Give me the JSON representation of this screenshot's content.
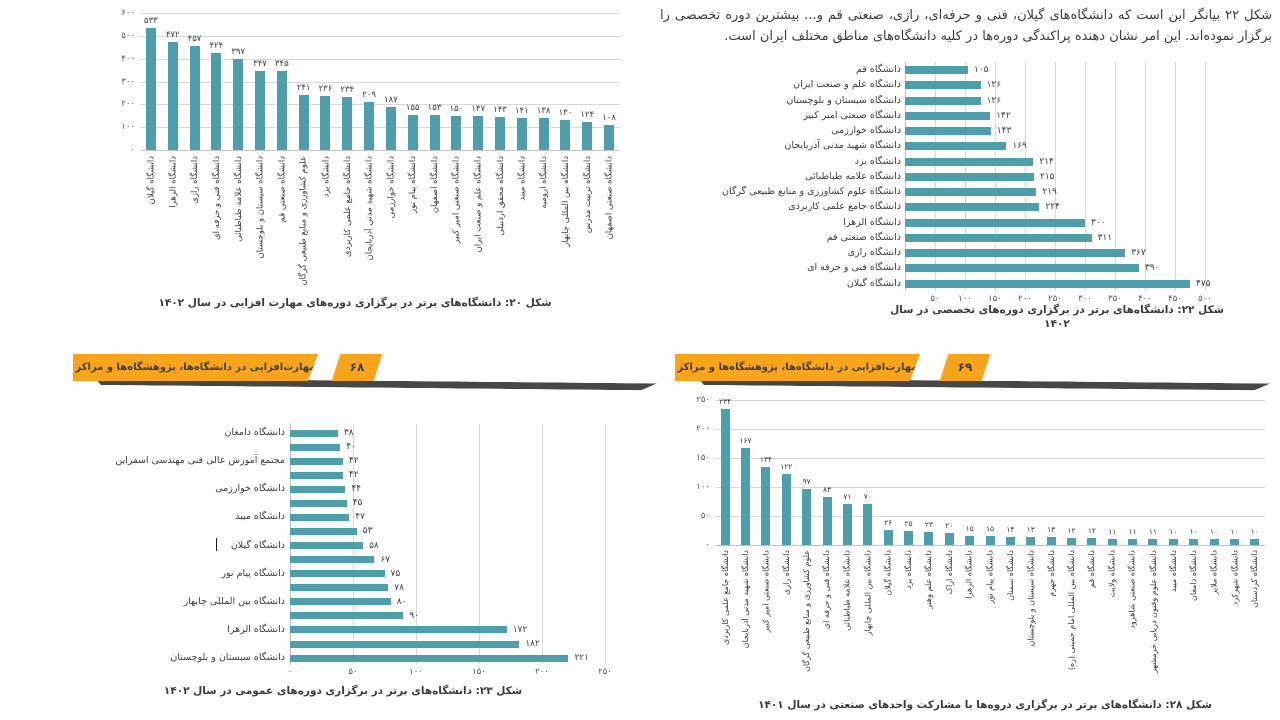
{
  "colors": {
    "bar": "#4e9fa9",
    "grid": "#d9d9d9",
    "axis": "#c2c2c2",
    "text": "#3d3d3d",
    "banner": "#f9a51c",
    "banner_shadow": "#474747"
  },
  "intro": {
    "text": "شکل ۲۲ بیانگر این است که دانشگاه‌های گیلان، فنی و حرفه‌ای، رازی، صنعتی قم و... بیشترین دوره تخصصی را برگزار نموده‌اند. این امر نشان دهنده پراکندگی دوره‌ها در کلیه دانشگاه‌های مناطق مختلف ایران است."
  },
  "banners": {
    "left": {
      "label": "مهارت‌افزایی در دانشگاه‌ها، پژوهشگاه‌ها و مراکز آموزش عالی کشور",
      "page_number": "۶۸"
    },
    "right": {
      "label": "مهارت‌افزایی در دانشگاه‌ها، پژوهشگاه‌ها و مراکز آموزش عالی کشور",
      "page_number": "۶۹"
    }
  },
  "chart_data": [
    {
      "id": "fig20",
      "type": "bar",
      "orientation": "vertical",
      "caption": "شکل ۲۰: دانشگاه‌های برتر در برگزاری دوره‌های مهارت افزایی در سال ۱۴۰۲",
      "ylim": [
        0,
        600
      ],
      "yticks": [
        0,
        100,
        200,
        300,
        400,
        500,
        600
      ],
      "grid": true,
      "categories": [
        "دانشگاه گیلان",
        "دانشگاه الزهرا",
        "دانشگاه رازی",
        "دانشگاه فنی و حرفه ای",
        "دانشگاه علامه طباطبائی",
        "دانشگاه سیستان و بلوچستان",
        "دانشگاه صنعتی قم",
        "علوم کشاورزی و منابع طبیعی گرگان",
        "دانشگاه یزد",
        "دانشگاه جامع علمی کاربردی",
        "دانشگاه شهید مدنی آذربایجان",
        "دانشگاه خوارزمی",
        "دانشگاه پیام نور",
        "دانشگاه اصفهان",
        "دانشگاه صنعتی امیر کبیر",
        "دانشگاه علم و صنعت ایران",
        "دانشگاه محقق اردبیلی",
        "دانشگاه میبد",
        "دانشگاه ارومیه",
        "دانشگاه بین المللی چابهار",
        "دانشگاه تربیت مدرس",
        "دانشگاه صنعتی اصفهان"
      ],
      "values": [
        533,
        472,
        457,
        424,
        397,
        347,
        345,
        241,
        236,
        234,
        209,
        187,
        155,
        153,
        150,
        147,
        143,
        141,
        138,
        130,
        124,
        108
      ]
    },
    {
      "id": "fig22",
      "type": "bar",
      "orientation": "horizontal",
      "caption": "شکل ۲۲: دانشگاه‌های برتر در برگزاری دوره‌های  تخصصی در سال\n۱۴۰۲",
      "xlim": [
        0,
        500
      ],
      "xticks": [
        50,
        100,
        150,
        200,
        250,
        300,
        350,
        400,
        450,
        500
      ],
      "grid": true,
      "categories": [
        "دانشگاه قم",
        "دانشگاه علم و صنعت ایران",
        "دانشگاه سیستان و بلوچستان",
        "دانشگاه صنعتی امیر کبیر",
        "دانشگاه خوارزمی",
        "دانشگاه شهید مدنی آذربایجان",
        "دانشگاه یزد",
        "دانشگاه علامه طباطبائی",
        "دانشگاه علوم کشاورزی و منابع طبیعی گرگان",
        "دانشگاه جامع علمی کاربردی",
        "دانشگاه الزهرا",
        "دانشگاه صنعتی قم",
        "دانشگاه رازی",
        "دانشگاه فنی و حرفه ای",
        "دانشگاه گیلان"
      ],
      "values": [
        105,
        126,
        126,
        142,
        143,
        169,
        214,
        215,
        219,
        224,
        300,
        311,
        367,
        390,
        475
      ]
    },
    {
      "id": "fig23",
      "type": "bar",
      "orientation": "horizontal",
      "caption": "شکل ۲۳: دانشگاه‌های برتر در برگزاری دوره‌های عمومی در سال ۱۴۰۲",
      "xlim": [
        0,
        250
      ],
      "xticks": [
        0,
        50,
        100,
        150,
        200,
        250
      ],
      "grid": true,
      "categories": [
        "دانشگاه دامغان",
        "",
        "مجتمع آموزش عالی فنی مهندسی اسفراین",
        "",
        "دانشگاه خوارزمی",
        "",
        "دانشگاه میبد",
        "",
        "دانشگاه گیلان",
        "",
        "دانشگاه پیام نور",
        "",
        "دانشگاه بین المللی چابهار",
        "",
        "دانشگاه الزهرا",
        "",
        "دانشگاه سیستان و بلوچستان"
      ],
      "values": [
        38,
        40,
        42,
        42,
        44,
        45,
        47,
        53,
        58,
        67,
        75,
        78,
        80,
        90,
        172,
        182,
        221
      ]
    },
    {
      "id": "fig28",
      "type": "bar",
      "orientation": "vertical",
      "caption": "شکل ۲۸: دانشگاه‌های برتر در برگزاری دروه‌ها با مشارکت واحدهای صنعتی در سال ۱۴۰۱",
      "ylim": [
        0,
        250
      ],
      "yticks": [
        0,
        50,
        100,
        150,
        200,
        250
      ],
      "grid": true,
      "categories": [
        "دانشگاه جامع علمی کاربردی",
        "دانشگاه شهید مدنی آذربایجان",
        "دانشگاه صنعتی امیر کبیر",
        "دانشگاه رازی",
        "علوم کشاورزی و منابع طبیعی گرگان",
        "دانشگاه فنی و حرفه ای",
        "دانشگاه علامه طباطبائی",
        "دانشگاه بین المللی چابهار",
        "دانشگاه گیلان",
        "دانشگاه یزد",
        "دانشگاه علم وهنر",
        "دانشگاه اراک",
        "دانشگاه الزهرا",
        "دانشگاه پیام نور",
        "دانشگاه سمنان",
        "دانشگاه سیستان و بلوچستان",
        "دانشگاه جهرم",
        "دانشگاه بین المللی امام خمینی (ره)",
        "دانشگاه قم",
        "دانشگاه ولایت",
        "دانشگاه صنعتی شاهرود",
        "دانشگاه علوم وفنون دریایی خرمشهر",
        "دانشگاه میبد",
        "دانشگاه دامغان",
        "دانشگاه ملایر",
        "دانشگاه شهرکرد",
        "دانشگاه کردستان"
      ],
      "values": [
        234,
        167,
        134,
        122,
        97,
        83,
        71,
        70,
        26,
        25,
        23,
        20,
        15,
        15,
        14,
        13,
        13,
        12,
        12,
        11,
        11,
        11,
        10,
        10,
        10,
        10,
        10
      ]
    }
  ]
}
